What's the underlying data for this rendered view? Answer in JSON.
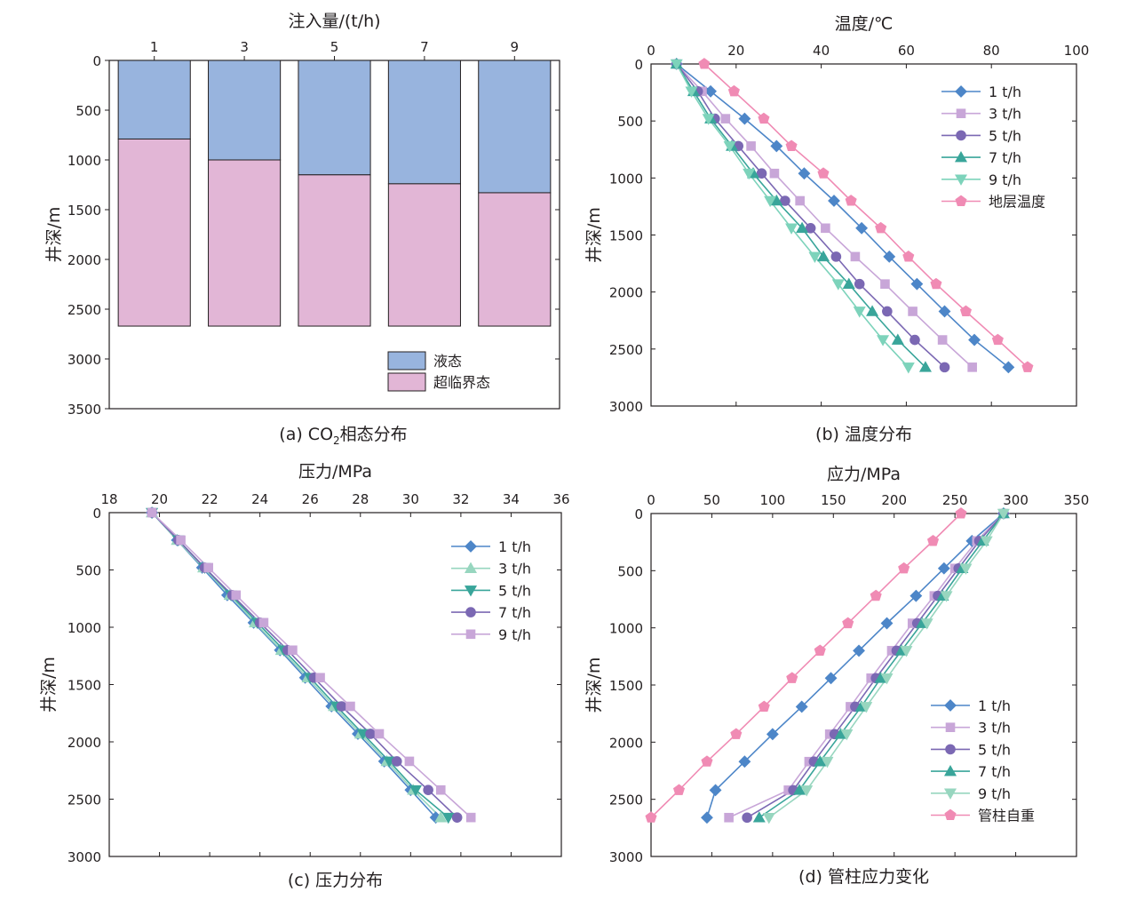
{
  "chart_data": [
    {
      "id": "a",
      "type": "bar",
      "title": "注入量/(t/h)",
      "xlabel": "注入量/(t/h)",
      "ylabel": "井深/m",
      "caption_prefix": "(a) CO",
      "caption_sub": "2",
      "caption_suffix": "相态分布",
      "categories": [
        "1",
        "3",
        "5",
        "7",
        "9"
      ],
      "ylim": [
        0,
        3500
      ],
      "yticks": [
        0,
        500,
        1000,
        1500,
        2000,
        2500,
        3000,
        3500
      ],
      "total_depth": 2670,
      "series": [
        {
          "name": "液态",
          "color": "#98b4de",
          "boundary": [
            790,
            1000,
            1150,
            1240,
            1330
          ]
        },
        {
          "name": "超临界态",
          "color": "#e2b6d6"
        }
      ],
      "legend": "bottom-right"
    },
    {
      "id": "b",
      "type": "line",
      "title": "温度/℃",
      "xlabel": "温度/℃",
      "ylabel": "井深/m",
      "caption": "(b) 温度分布",
      "xlim": [
        0,
        100
      ],
      "xticks": [
        0,
        20,
        40,
        60,
        80,
        100
      ],
      "ylim": [
        0,
        3000
      ],
      "yticks": [
        0,
        500,
        1000,
        1500,
        2000,
        2500,
        3000
      ],
      "depths": [
        0,
        240,
        480,
        720,
        960,
        1200,
        1440,
        1690,
        1930,
        2170,
        2420,
        2660
      ],
      "series": [
        {
          "name": "1 t/h",
          "color": "#4d86c8",
          "marker": "diamond",
          "values": [
            6,
            14,
            22,
            29.5,
            36,
            43,
            49.5,
            56,
            62.5,
            69,
            76,
            84
          ]
        },
        {
          "name": "3 t/h",
          "color": "#c8a6d8",
          "marker": "square",
          "values": [
            6,
            12,
            17.5,
            23.5,
            29,
            35,
            41,
            48,
            55,
            61.5,
            68.5,
            75.5
          ]
        },
        {
          "name": "5 t/h",
          "color": "#7b68b3",
          "marker": "circle",
          "values": [
            6,
            11,
            15,
            20.5,
            26,
            31.5,
            37.5,
            43.5,
            49,
            55.5,
            62,
            69
          ]
        },
        {
          "name": "7 t/h",
          "color": "#39a59a",
          "marker": "triangle",
          "values": [
            6,
            10,
            14,
            19,
            24,
            29.5,
            35.5,
            40.5,
            46.5,
            52,
            58,
            64.5
          ]
        },
        {
          "name": "9 t/h",
          "color": "#7dd3bb",
          "marker": "triangle-down",
          "values": [
            6,
            9.5,
            13.5,
            18.5,
            23,
            28,
            33,
            38.5,
            44,
            49,
            54.5,
            60.5
          ]
        },
        {
          "name": "地层温度",
          "color": "#f08bb4",
          "marker": "pentagon",
          "values": [
            12.5,
            19.5,
            26.5,
            33,
            40.5,
            47,
            54,
            60.5,
            67,
            74,
            81.5,
            88.5
          ]
        }
      ],
      "legend": "top-right"
    },
    {
      "id": "c",
      "type": "line",
      "title": "压力/MPa",
      "xlabel": "压力/MPa",
      "ylabel": "井深/m",
      "caption": "(c) 压力分布",
      "xlim": [
        18,
        36
      ],
      "xticks": [
        18,
        20,
        22,
        24,
        26,
        28,
        30,
        32,
        34,
        36
      ],
      "ylim": [
        0,
        3000
      ],
      "yticks": [
        0,
        500,
        1000,
        1500,
        2000,
        2500,
        3000
      ],
      "depths": [
        0,
        240,
        480,
        720,
        960,
        1200,
        1440,
        1690,
        1930,
        2170,
        2420,
        2660
      ],
      "series": [
        {
          "name": "1 t/h",
          "color": "#4d86c8",
          "marker": "diamond",
          "values": [
            19.7,
            20.7,
            21.7,
            22.7,
            23.75,
            24.8,
            25.8,
            26.85,
            27.9,
            28.95,
            30.0,
            31.0
          ]
        },
        {
          "name": "3 t/h",
          "color": "#97d6bf",
          "marker": "triangle",
          "values": [
            19.7,
            20.7,
            21.75,
            22.8,
            23.8,
            24.85,
            25.9,
            26.95,
            28.0,
            29.05,
            30.1,
            31.2
          ]
        },
        {
          "name": "5 t/h",
          "color": "#39a59a",
          "marker": "triangle-down",
          "values": [
            19.7,
            20.75,
            21.8,
            22.85,
            23.9,
            24.95,
            26.0,
            27.05,
            28.1,
            29.15,
            30.2,
            31.5
          ]
        },
        {
          "name": "7 t/h",
          "color": "#7b68b3",
          "marker": "circle",
          "values": [
            19.7,
            20.75,
            21.8,
            22.9,
            24.0,
            25.1,
            26.15,
            27.25,
            28.4,
            29.45,
            30.7,
            31.85
          ]
        },
        {
          "name": "9 t/h",
          "color": "#c8a6d8",
          "marker": "square",
          "values": [
            19.7,
            20.85,
            21.95,
            23.05,
            24.15,
            25.3,
            26.4,
            27.6,
            28.75,
            29.95,
            31.2,
            32.4
          ]
        }
      ],
      "legend": "top-right"
    },
    {
      "id": "d",
      "type": "line",
      "title": "应力/MPa",
      "xlabel": "应力/MPa",
      "ylabel": "井深/m",
      "caption": "(d) 管柱应力变化",
      "xlim": [
        0,
        350
      ],
      "xticks": [
        0,
        50,
        100,
        150,
        200,
        250,
        300,
        350
      ],
      "ylim": [
        0,
        3000
      ],
      "yticks": [
        0,
        500,
        1000,
        1500,
        2000,
        2500,
        3000
      ],
      "depths": [
        0,
        240,
        480,
        720,
        960,
        1200,
        1440,
        1690,
        1930,
        2170,
        2420,
        2660
      ],
      "series": [
        {
          "name": "1 t/h",
          "color": "#4d86c8",
          "marker": "diamond",
          "values": [
            290,
            264,
            241,
            218,
            194,
            171,
            148,
            124,
            100,
            77,
            53,
            46
          ]
        },
        {
          "name": "3 t/h",
          "color": "#c8a6d8",
          "marker": "square",
          "values": [
            290,
            268,
            250,
            233,
            215,
            198,
            181,
            164,
            147,
            130,
            113,
            64
          ]
        },
        {
          "name": "5 t/h",
          "color": "#7b68b3",
          "marker": "circle",
          "values": [
            290,
            270,
            253,
            236,
            219,
            202,
            185,
            168,
            151,
            134,
            117,
            79
          ]
        },
        {
          "name": "7 t/h",
          "color": "#39a59a",
          "marker": "triangle",
          "values": [
            290,
            273,
            256,
            240,
            223,
            206,
            189,
            173,
            156,
            139,
            122,
            89
          ]
        },
        {
          "name": "9 t/h",
          "color": "#97d6bf",
          "marker": "triangle-down",
          "values": [
            290,
            276,
            259,
            243,
            227,
            210,
            194,
            177,
            161,
            145,
            128,
            97
          ]
        },
        {
          "name": "管柱自重",
          "color": "#f08bb4",
          "marker": "pentagon",
          "values": [
            255,
            232,
            208,
            185,
            162,
            139,
            116,
            93,
            70,
            46,
            23,
            0
          ]
        }
      ],
      "legend": "bottom-right"
    }
  ]
}
